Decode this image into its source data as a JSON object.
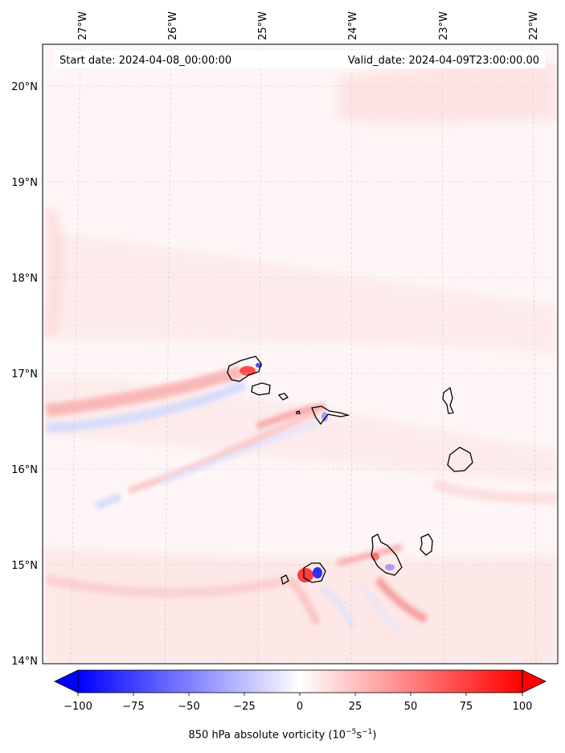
{
  "header": {
    "start_date": "Start date: 2024-04-08_00:00:00",
    "valid_date": "Valid_date: 2024-04-09T23:00:00.00"
  },
  "longitude_ticks": [
    "27°W",
    "26°W",
    "25°W",
    "24°W",
    "23°W",
    "22°W"
  ],
  "latitude_ticks": [
    "20°N",
    "19°N",
    "18°N",
    "17°N",
    "16°N",
    "15°N",
    "14°N"
  ],
  "colorbar": {
    "ticks": [
      "−100",
      "−75",
      "−50",
      "−25",
      "0",
      "25",
      "50",
      "75",
      "100"
    ],
    "label_prefix": "850 hPa absolute vorticity (10",
    "label_exp1": "−5",
    "label_mid": "s",
    "label_exp2": "−1",
    "label_suffix": ")",
    "min_color": "#0000ff",
    "mid_color": "#ffffff",
    "max_color": "#ff0000"
  },
  "map": {
    "grid": true,
    "projection": "lat-lon",
    "field": "850 hPa absolute vorticity",
    "coastline_color": "#000000"
  }
}
